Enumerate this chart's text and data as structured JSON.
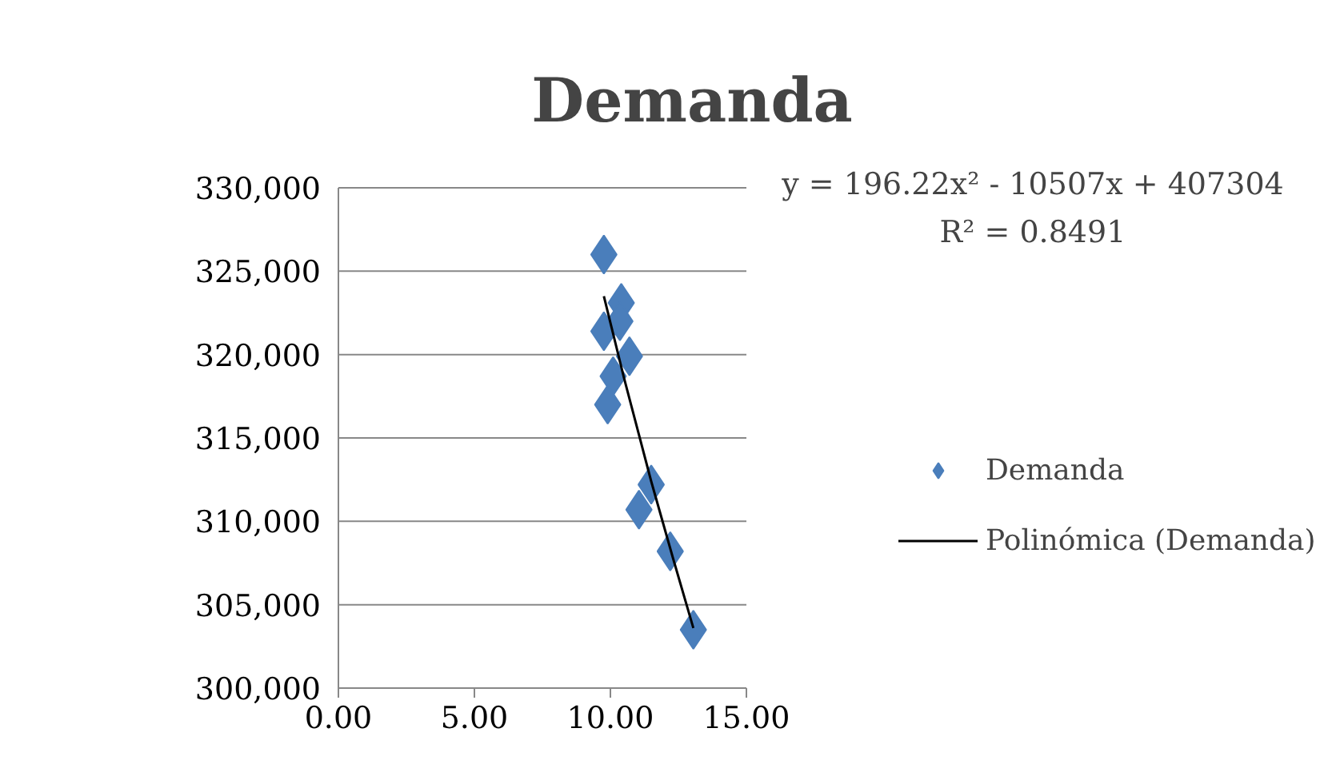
{
  "chart_data": {
    "type": "scatter",
    "title": "Demanda",
    "annotations": [
      "y = 196.22x² - 10507x + 407304",
      "R² = 0.8491"
    ],
    "series": [
      {
        "name": "Demanda",
        "color": "#4a7ebb",
        "marker": "diamond",
        "x": [
          9.76,
          10.4,
          10.35,
          9.76,
          10.7,
          10.1,
          9.9,
          11.5,
          11.05,
          12.2,
          13.05
        ],
        "values": [
          326000,
          323100,
          322000,
          321400,
          319900,
          318700,
          317000,
          312200,
          310700,
          308200,
          303500
        ]
      },
      {
        "name": "Polinómica (Demanda)",
        "type": "line",
        "color": "#000000",
        "marker": "none",
        "x": [
          9.76,
          10.5,
          11.5,
          12.3,
          13.05
        ],
        "values": [
          323500,
          318600,
          312400,
          307800,
          303600
        ]
      }
    ],
    "xlim": [
      0,
      15
    ],
    "xticks": [
      {
        "value": 0,
        "label": "0.00"
      },
      {
        "value": 5,
        "label": "5.00"
      },
      {
        "value": 10,
        "label": "10.00"
      },
      {
        "value": 15,
        "label": "15.00"
      }
    ],
    "ylim": [
      300000,
      330000
    ],
    "yticks": [
      {
        "value": 300000,
        "label": "300,000"
      },
      {
        "value": 305000,
        "label": "305,000"
      },
      {
        "value": 310000,
        "label": "310,000"
      },
      {
        "value": 315000,
        "label": "315,000"
      },
      {
        "value": 320000,
        "label": "320,000"
      },
      {
        "value": 325000,
        "label": "325,000"
      },
      {
        "value": 330000,
        "label": "330,000"
      }
    ],
    "grid": "y",
    "legend": "right"
  }
}
